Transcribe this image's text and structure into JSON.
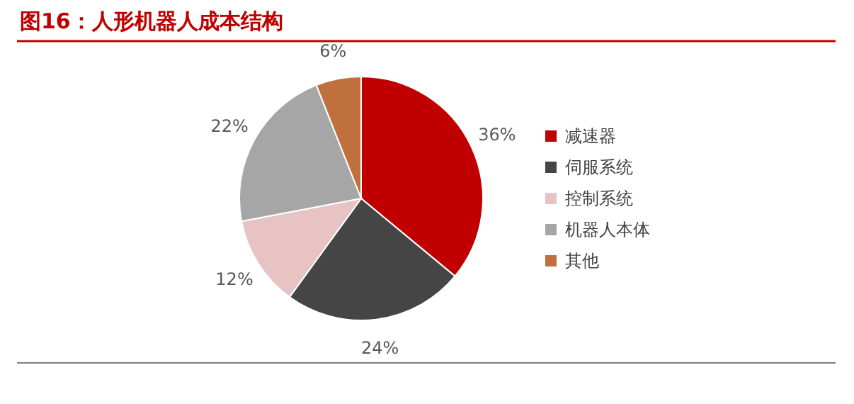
{
  "chart_data": {
    "type": "pie",
    "title": "图16：人形机器人成本结构",
    "categories": [
      "减速器",
      "伺服系统",
      "控制系统",
      "机器人本体",
      "其他"
    ],
    "values": [
      36,
      24,
      12,
      22,
      6
    ],
    "colors": [
      "#c00000",
      "#454545",
      "#e8c3c3",
      "#a6a6a6",
      "#c0703c"
    ],
    "value_labels": [
      "36%",
      "24%",
      "12%",
      "22%",
      "6%"
    ],
    "legend": "right"
  }
}
